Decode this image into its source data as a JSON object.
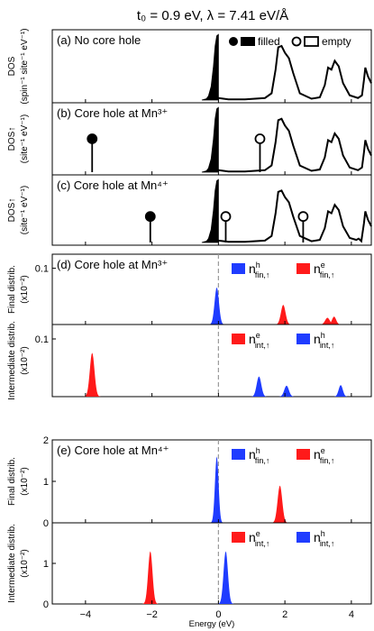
{
  "figure": {
    "title": "t₀ = 0.9 eV,   λ = 7.41 eV/Å",
    "xlabel": "Energy (eV)"
  },
  "colors": {
    "filled": "#000000",
    "hole": "#1f3cff",
    "electron": "#ff1a1a",
    "fermi": "#9a9a9a"
  },
  "legend_top": {
    "filled_label": "filled",
    "empty_label": "empty"
  },
  "chart_data": [
    {
      "panel": "a",
      "type": "line",
      "label": "(a) No core hole",
      "ylabel": "DOS (spin⁻¹ site⁻¹ eV⁻¹)",
      "xlim": [
        -5,
        4.6
      ],
      "filled_band": [
        [
          -0.5,
          0
        ],
        [
          -0.36,
          0.02
        ],
        [
          -0.3,
          0.06
        ],
        [
          -0.22,
          0.2
        ],
        [
          -0.15,
          0.5
        ],
        [
          -0.1,
          0.8
        ],
        [
          -0.05,
          0.95
        ],
        [
          0,
          0.97
        ]
      ],
      "empty_band": [
        [
          0,
          0.03
        ],
        [
          0.3,
          0.01
        ],
        [
          0.8,
          0.01
        ],
        [
          1.4,
          0.03
        ],
        [
          1.6,
          0.1
        ],
        [
          1.72,
          0.45
        ],
        [
          1.8,
          0.78
        ],
        [
          1.9,
          0.8
        ],
        [
          2.0,
          0.7
        ],
        [
          2.12,
          0.62
        ],
        [
          2.25,
          0.4
        ],
        [
          2.45,
          0.1
        ],
        [
          2.8,
          0.02
        ],
        [
          3.05,
          0.04
        ],
        [
          3.2,
          0.22
        ],
        [
          3.3,
          0.48
        ],
        [
          3.4,
          0.45
        ],
        [
          3.5,
          0.58
        ],
        [
          3.62,
          0.5
        ],
        [
          3.75,
          0.25
        ],
        [
          3.95,
          0.07
        ],
        [
          4.2,
          0.03
        ],
        [
          4.32,
          0.07
        ],
        [
          4.38,
          0.3
        ],
        [
          4.42,
          0.48
        ],
        [
          4.5,
          0.35
        ],
        [
          4.6,
          0.25
        ]
      ],
      "markers": []
    },
    {
      "panel": "b",
      "type": "line",
      "label": "(b) Core hole at Mn³⁺",
      "ylabel": "DOS↑ (site⁻¹ eV⁻¹)",
      "xlim": [
        -5,
        4.6
      ],
      "filled_band": [
        [
          -0.5,
          0
        ],
        [
          -0.36,
          0.02
        ],
        [
          -0.3,
          0.06
        ],
        [
          -0.22,
          0.2
        ],
        [
          -0.15,
          0.5
        ],
        [
          -0.1,
          0.8
        ],
        [
          -0.05,
          0.95
        ],
        [
          0,
          0.97
        ]
      ],
      "empty_band": [
        [
          0,
          0.03
        ],
        [
          0.3,
          0.01
        ],
        [
          0.8,
          0.01
        ],
        [
          1.4,
          0.03
        ],
        [
          1.6,
          0.1
        ],
        [
          1.72,
          0.45
        ],
        [
          1.8,
          0.78
        ],
        [
          1.9,
          0.8
        ],
        [
          2.0,
          0.7
        ],
        [
          2.12,
          0.62
        ],
        [
          2.25,
          0.4
        ],
        [
          2.45,
          0.1
        ],
        [
          2.8,
          0.02
        ],
        [
          3.05,
          0.04
        ],
        [
          3.2,
          0.22
        ],
        [
          3.3,
          0.48
        ],
        [
          3.4,
          0.45
        ],
        [
          3.5,
          0.58
        ],
        [
          3.62,
          0.5
        ],
        [
          3.75,
          0.25
        ],
        [
          3.95,
          0.07
        ],
        [
          4.2,
          0.03
        ],
        [
          4.32,
          0.07
        ],
        [
          4.38,
          0.3
        ],
        [
          4.42,
          0.48
        ],
        [
          4.5,
          0.35
        ],
        [
          4.6,
          0.25
        ]
      ],
      "markers": [
        {
          "x": -3.8,
          "y": 0.5,
          "filled": true
        },
        {
          "x": 1.25,
          "y": 0.5,
          "filled": false
        }
      ]
    },
    {
      "panel": "c",
      "type": "line",
      "label": "(c) Core hole at Mn⁴⁺",
      "ylabel": "DOS↑ (site⁻¹ eV⁻¹)",
      "xlim": [
        -5,
        4.6
      ],
      "filled_band": [
        [
          -0.5,
          0
        ],
        [
          -0.36,
          0.02
        ],
        [
          -0.3,
          0.06
        ],
        [
          -0.22,
          0.2
        ],
        [
          -0.15,
          0.5
        ],
        [
          -0.1,
          0.8
        ],
        [
          -0.05,
          0.95
        ],
        [
          0,
          0.97
        ]
      ],
      "empty_band": [
        [
          0,
          0.03
        ],
        [
          0.3,
          0.01
        ],
        [
          0.8,
          0.01
        ],
        [
          1.4,
          0.03
        ],
        [
          1.6,
          0.1
        ],
        [
          1.72,
          0.45
        ],
        [
          1.8,
          0.78
        ],
        [
          1.9,
          0.8
        ],
        [
          2.0,
          0.7
        ],
        [
          2.12,
          0.62
        ],
        [
          2.25,
          0.4
        ],
        [
          2.45,
          0.1
        ],
        [
          2.8,
          0.02
        ],
        [
          3.05,
          0.04
        ],
        [
          3.2,
          0.22
        ],
        [
          3.3,
          0.48
        ],
        [
          3.4,
          0.45
        ],
        [
          3.5,
          0.58
        ],
        [
          3.62,
          0.5
        ],
        [
          3.75,
          0.25
        ],
        [
          3.95,
          0.07
        ],
        [
          4.15,
          0.04
        ],
        [
          4.22,
          0.06
        ],
        [
          4.3,
          0.02
        ],
        [
          4.38,
          0.3
        ],
        [
          4.42,
          0.48
        ],
        [
          4.5,
          0.35
        ],
        [
          4.6,
          0.25
        ]
      ],
      "markers": [
        {
          "x": -2.05,
          "y": 0.4,
          "filled": true
        },
        {
          "x": 0.22,
          "y": 0.4,
          "filled": false
        },
        {
          "x": 2.55,
          "y": 0.4,
          "filled": false
        }
      ]
    },
    {
      "panel": "d-final",
      "type": "area",
      "label": "(d) Core hole at Mn³⁺",
      "ylabel": "Final distrib. (x10⁻²)",
      "xlim": [
        -5,
        4.6
      ],
      "ylim": [
        0,
        0.125
      ],
      "yticks": [
        {
          "v": 0.1,
          "t": "0.1"
        }
      ],
      "legend": [
        {
          "series": "hole",
          "main": "n",
          "sup": "h",
          "sub": "fin,↑"
        },
        {
          "series": "electron",
          "main": "n",
          "sup": "e",
          "sub": "fin,↑"
        }
      ],
      "series": [
        {
          "name": "hole",
          "peaks": [
            {
              "x": -0.05,
              "h": 0.066,
              "w": 0.085
            }
          ]
        },
        {
          "name": "electron",
          "peaks": [
            {
              "x": 1.95,
              "h": 0.035,
              "w": 0.09
            },
            {
              "x": 3.28,
              "h": 0.012,
              "w": 0.09
            },
            {
              "x": 3.48,
              "h": 0.014,
              "w": 0.08
            }
          ]
        }
      ]
    },
    {
      "panel": "d-intermediate",
      "type": "area",
      "label": "",
      "ylabel": "Intermediate distrib. (x10⁻²)",
      "xlim": [
        -5,
        4.6
      ],
      "ylim": [
        0,
        0.125
      ],
      "yticks": [
        {
          "v": 0.1,
          "t": "0.1"
        }
      ],
      "legend": [
        {
          "series": "electron",
          "main": "n",
          "sup": "e",
          "sub": "int,↑"
        },
        {
          "series": "hole",
          "main": "n",
          "sup": "h",
          "sub": "int,↑"
        }
      ],
      "series": [
        {
          "name": "electron",
          "peaks": [
            {
              "x": -3.8,
              "h": 0.076,
              "w": 0.09
            }
          ]
        },
        {
          "name": "hole",
          "peaks": [
            {
              "x": 1.22,
              "h": 0.035,
              "w": 0.09
            },
            {
              "x": 2.05,
              "h": 0.019,
              "w": 0.09
            },
            {
              "x": 3.68,
              "h": 0.02,
              "w": 0.08
            }
          ]
        }
      ]
    },
    {
      "panel": "e-final",
      "type": "area",
      "label": "(e) Core hole at Mn⁴⁺",
      "ylabel": "Final distrib. (x10⁻²)",
      "xlim": [
        -5,
        4.6
      ],
      "ylim": [
        0,
        2.0
      ],
      "yticks": [
        {
          "v": 0,
          "t": "0"
        },
        {
          "v": 1,
          "t": "1"
        },
        {
          "v": 2,
          "t": "2"
        }
      ],
      "legend": [
        {
          "series": "hole",
          "main": "n",
          "sup": "h",
          "sub": "fin,↑"
        },
        {
          "series": "electron",
          "main": "n",
          "sup": "e",
          "sub": "fin,↑"
        }
      ],
      "series": [
        {
          "name": "hole",
          "peaks": [
            {
              "x": -0.05,
              "h": 1.6,
              "w": 0.07
            }
          ]
        },
        {
          "name": "electron",
          "peaks": [
            {
              "x": 1.85,
              "h": 0.9,
              "w": 0.09
            }
          ]
        }
      ]
    },
    {
      "panel": "e-intermediate",
      "type": "area",
      "label": "",
      "ylabel": "Intermediate distrib. (x10⁻²)",
      "xlim": [
        -5,
        4.6
      ],
      "ylim": [
        0,
        2.0
      ],
      "yticks": [
        {
          "v": 0,
          "t": "0"
        },
        {
          "v": 1,
          "t": "1"
        }
      ],
      "xticks": [
        -4,
        -2,
        0,
        2,
        4
      ],
      "legend": [
        {
          "series": "electron",
          "main": "n",
          "sup": "e",
          "sub": "int,↑"
        },
        {
          "series": "hole",
          "main": "n",
          "sup": "h",
          "sub": "int,↑"
        }
      ],
      "series": [
        {
          "name": "electron",
          "peaks": [
            {
              "x": -2.05,
              "h": 1.3,
              "w": 0.085
            }
          ]
        },
        {
          "name": "hole",
          "peaks": [
            {
              "x": 0.22,
              "h": 1.3,
              "w": 0.085
            }
          ]
        }
      ]
    }
  ]
}
